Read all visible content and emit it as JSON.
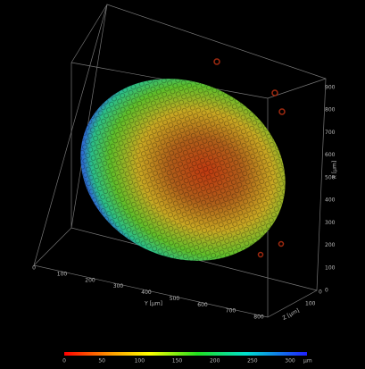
{
  "y_axis": {
    "label": "Y [µm]",
    "ticks": [
      0,
      100,
      200,
      300,
      400,
      500,
      600,
      700,
      800
    ]
  },
  "x_axis": {
    "label": "X [µm]",
    "ticks": [
      0,
      100,
      200,
      300,
      400,
      500,
      600,
      700,
      800,
      900
    ]
  },
  "z_axis": {
    "label": "Z [µm]",
    "ticks": [
      0,
      100
    ]
  },
  "colorbar": {
    "ticks": [
      0,
      50,
      100,
      150,
      200,
      250,
      300
    ],
    "unit": "µm"
  }
}
